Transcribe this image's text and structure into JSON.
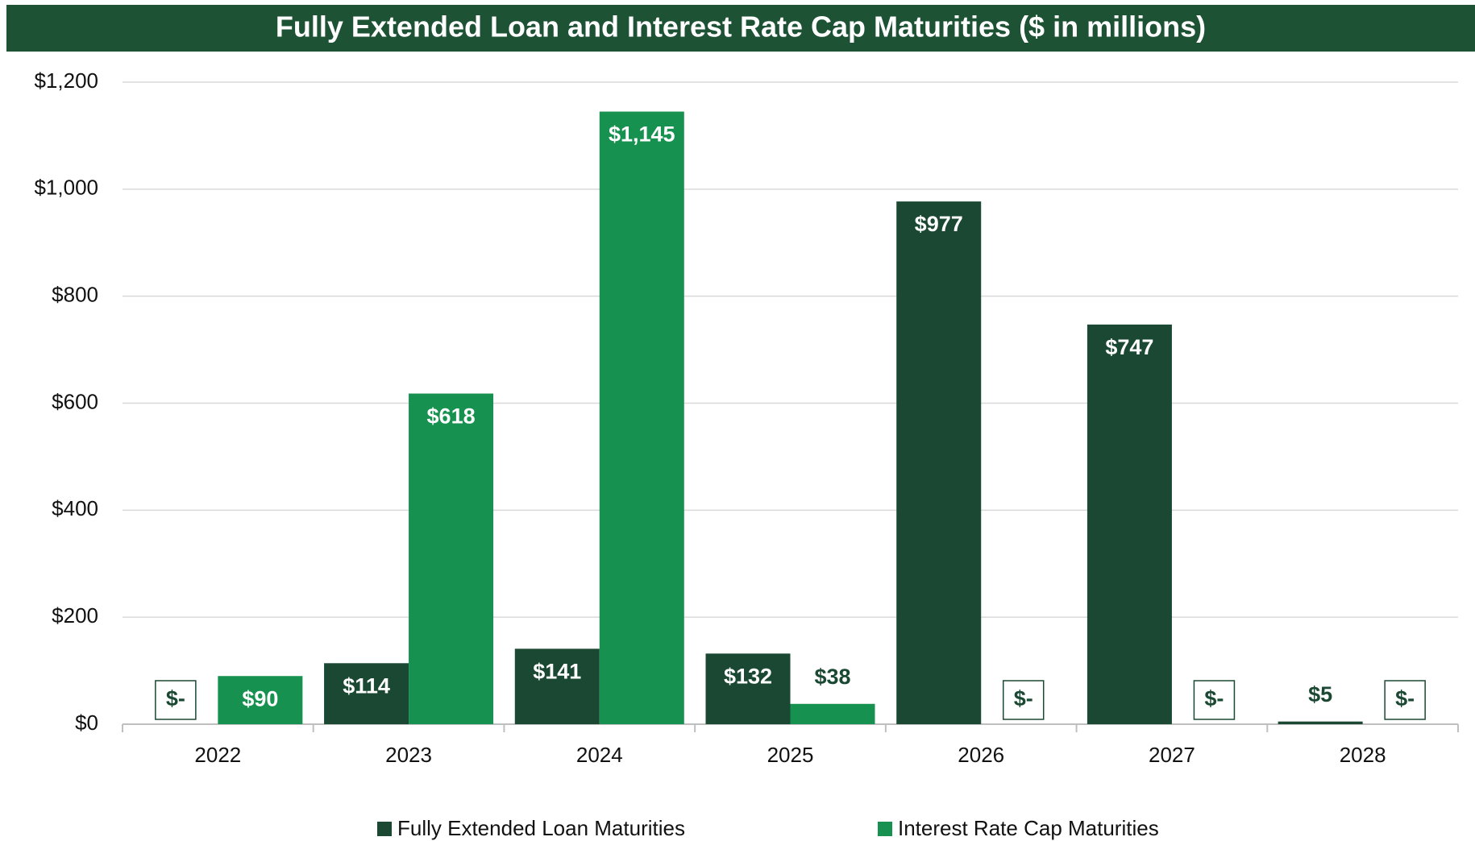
{
  "chart_data": {
    "type": "bar",
    "title": "Fully Extended Loan and Interest Rate Cap Maturities ($ in millions)",
    "categories": [
      "2022",
      "2023",
      "2024",
      "2025",
      "2026",
      "2027",
      "2028"
    ],
    "series": [
      {
        "name": "Fully Extended Loan Maturities",
        "color": "#1a4832",
        "values": [
          0,
          114,
          141,
          132,
          977,
          747,
          5
        ],
        "value_labels": [
          "$-",
          "$114",
          "$141",
          "$132",
          "$977",
          "$747",
          "$5"
        ]
      },
      {
        "name": "Interest Rate Cap Maturities",
        "color": "#17914f",
        "values": [
          90,
          618,
          1145,
          38,
          0,
          0,
          0
        ],
        "value_labels": [
          "$90",
          "$618",
          "$1,145",
          "$38",
          "$-",
          "$-",
          "$-"
        ]
      }
    ],
    "ylim": [
      0,
      1200
    ],
    "yticks": [
      {
        "value": 0,
        "label": "$0"
      },
      {
        "value": 200,
        "label": "$200"
      },
      {
        "value": 400,
        "label": "$400"
      },
      {
        "value": 600,
        "label": "$600"
      },
      {
        "value": 800,
        "label": "$800"
      },
      {
        "value": 1000,
        "label": "$1,000"
      },
      {
        "value": 1200,
        "label": "$1,200"
      }
    ],
    "grid": true,
    "legend": "bottom"
  }
}
